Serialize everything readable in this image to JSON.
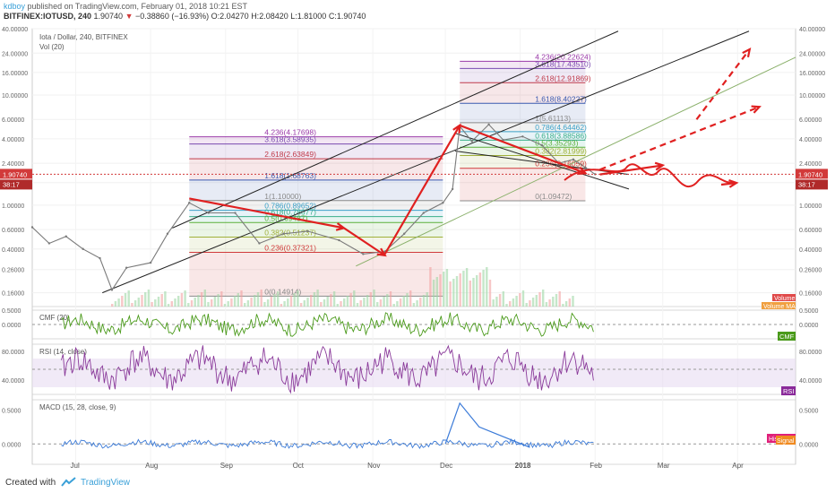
{
  "header": {
    "author": "kdboy",
    "published": "published on TradingView.com, February 01, 2018 10:21 EST",
    "symbol": "BITFINEX:IOTUSD, 240",
    "last": "1.90740",
    "change": "−0.38860 (−16.93%)",
    "open": "O:2.04270",
    "high": "H:2.08420",
    "low": "L:1.81000",
    "close": "C:1.90740"
  },
  "footer": {
    "created_with": "Created with",
    "brand": "TradingView"
  },
  "colors": {
    "price_line": "#7a7a7a",
    "arrow_red": "#e02020",
    "channel_black": "#222222",
    "channel_green": "#8ab06a",
    "cmf_green": "#4a9a1a",
    "rsi_purple": "#8a3a9a",
    "macd_blue": "#3a7ad8",
    "hist_pink": "#e0207a",
    "last_price": "#d23a3a"
  },
  "chart_data": [
    {
      "type": "line",
      "title": "Iota / Dollar, 240, BITFINEX",
      "subtitle": "Vol (20)",
      "y_scale": "log",
      "ylim": [
        0.12,
        40
      ],
      "y_ticks": [
        "40.00000",
        "24.00000",
        "16.00000",
        "10.00000",
        "6.00000",
        "4.00000",
        "2.40000",
        "1.60000",
        "1.00000",
        "0.60000",
        "0.40000",
        "0.26000",
        "0.16000"
      ],
      "x_ticks": [
        "Jul",
        "Aug",
        "Sep",
        "Oct",
        "Nov",
        "Dec",
        "2018",
        "Feb",
        "Mar",
        "Apr"
      ],
      "x_range": [
        "2017-06-13",
        "2018-04-25"
      ],
      "series": [
        {
          "values": [
            {
              "x": "2017-06-13",
              "y": 0.63
            },
            {
              "x": "2017-06-20",
              "y": 0.45
            },
            {
              "x": "2017-06-27",
              "y": 0.52
            },
            {
              "x": "2017-07-04",
              "y": 0.4
            },
            {
              "x": "2017-07-11",
              "y": 0.33
            },
            {
              "x": "2017-07-16",
              "y": 0.17
            },
            {
              "x": "2017-07-22",
              "y": 0.27
            },
            {
              "x": "2017-08-01",
              "y": 0.3
            },
            {
              "x": "2017-08-08",
              "y": 0.55
            },
            {
              "x": "2017-08-17",
              "y": 1.05
            },
            {
              "x": "2017-08-25",
              "y": 0.85
            },
            {
              "x": "2017-09-05",
              "y": 0.85
            },
            {
              "x": "2017-09-15",
              "y": 0.45
            },
            {
              "x": "2017-09-25",
              "y": 0.55
            },
            {
              "x": "2017-10-05",
              "y": 0.58
            },
            {
              "x": "2017-10-18",
              "y": 0.48
            },
            {
              "x": "2017-10-28",
              "y": 0.36
            },
            {
              "x": "2017-11-06",
              "y": 0.38
            },
            {
              "x": "2017-11-14",
              "y": 0.55
            },
            {
              "x": "2017-11-22",
              "y": 0.85
            },
            {
              "x": "2017-11-30",
              "y": 1.05
            },
            {
              "x": "2017-12-04",
              "y": 1.4
            },
            {
              "x": "2017-12-07",
              "y": 5.2
            },
            {
              "x": "2017-12-12",
              "y": 3.8
            },
            {
              "x": "2017-12-19",
              "y": 5.4
            },
            {
              "x": "2017-12-25",
              "y": 3.9
            },
            {
              "x": "2018-01-02",
              "y": 4.2
            },
            {
              "x": "2018-01-10",
              "y": 3.5
            },
            {
              "x": "2018-01-17",
              "y": 2.4
            },
            {
              "x": "2018-01-23",
              "y": 2.6
            },
            {
              "x": "2018-01-28",
              "y": 2.2
            },
            {
              "x": "2018-02-01",
              "y": 1.9074
            }
          ]
        }
      ],
      "last_price_label": "1.90740",
      "countdown_label": "38:17",
      "fib_levels_1": [
        {
          "label": "4.236(4.17698)",
          "value": 4.17698,
          "color": "#9a3aa8"
        },
        {
          "label": "3.618(3.58935)",
          "value": 3.58935,
          "color": "#7a4ab0"
        },
        {
          "label": "2.618(2.63849)",
          "value": 2.63849,
          "color": "#c03a4a"
        },
        {
          "label": "1.618(1.68763)",
          "value": 1.68763,
          "color": "#3a5ab0"
        },
        {
          "label": "1(1.10000)",
          "value": 1.1,
          "color": "#8a8a8a"
        },
        {
          "label": "0.786(0.89652)",
          "value": 0.89652,
          "color": "#3aa0c8"
        },
        {
          "label": "0.618(0.78677)",
          "value": 0.78677,
          "color": "#3ab08a"
        },
        {
          "label": "0.5(0.69487)",
          "value": 0.69487,
          "color": "#5ab03a"
        },
        {
          "label": "0.382(0.51237)",
          "value": 0.51237,
          "color": "#a0b03a"
        },
        {
          "label": "0.236(0.37321)",
          "value": 0.37321,
          "color": "#d03a3a"
        },
        {
          "label": "0(0.14914)",
          "value": 0.14914,
          "color": "#8a8a8a"
        }
      ],
      "fib_levels_2": [
        {
          "label": "4.236(20.22624)",
          "value": 20.22624,
          "color": "#9a3aa8"
        },
        {
          "label": "3.618(17.43510)",
          "value": 17.4351,
          "color": "#7a4ab0"
        },
        {
          "label": "2.618(12.91869)",
          "value": 12.91869,
          "color": "#c03a4a"
        },
        {
          "label": "1.618(8.40227)",
          "value": 8.40227,
          "color": "#3a5ab0"
        },
        {
          "label": "1(5.61113)",
          "value": 5.61113,
          "color": "#8a8a8a"
        },
        {
          "label": "0.786(4.64462)",
          "value": 4.64462,
          "color": "#3aa0c8"
        },
        {
          "label": "0.618(3.88586)",
          "value": 3.88586,
          "color": "#3ab08a"
        },
        {
          "label": "0.5(3.35293)",
          "value": 3.35293,
          "color": "#5ab03a"
        },
        {
          "label": "0.382(2.81999)",
          "value": 2.81999,
          "color": "#a0b03a"
        },
        {
          "label": "0.236(2.16059)",
          "value": 2.16059,
          "color": "#d03a3a"
        },
        {
          "label": "0(1.09472)",
          "value": 1.09472,
          "color": "#8a8a8a"
        }
      ],
      "legend": [
        "Volume",
        "Volume MA"
      ]
    },
    {
      "type": "line",
      "title": "CMF (20)",
      "ylim": [
        -0.5,
        0.5
      ],
      "y_ticks": [
        "0.5000",
        "0.0000"
      ],
      "badge": "CMF"
    },
    {
      "type": "line",
      "title": "RSI (14, close)",
      "ylim": [
        20,
        90
      ],
      "y_ticks": [
        "80.0000",
        "40.0000"
      ],
      "band": [
        30,
        70
      ],
      "badge": "RSI"
    },
    {
      "type": "line",
      "title": "MACD (15, 28, close, 9)",
      "ylim": [
        -0.3,
        0.65
      ],
      "y_ticks": [
        "0.5000",
        "0.0000"
      ],
      "badges": [
        "Histogram",
        "Signal"
      ]
    }
  ]
}
